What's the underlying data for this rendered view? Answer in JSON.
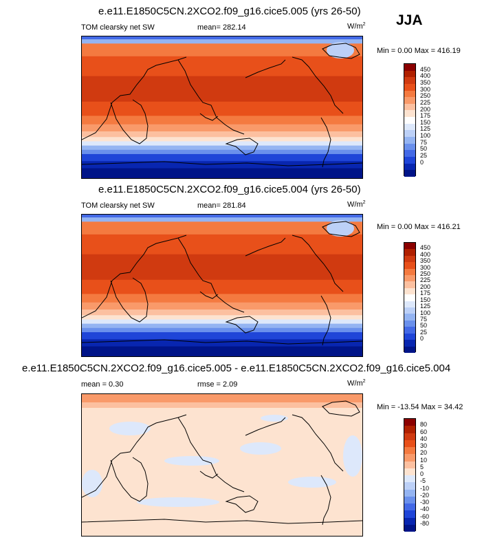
{
  "season": "JJA",
  "colors": {
    "abs_scale": [
      "#8b0000",
      "#b02000",
      "#d03a10",
      "#e8501a",
      "#f47a40",
      "#f99a6a",
      "#fcc0a0",
      "#fde3d0",
      "#ffffff",
      "#dde8fb",
      "#bcd0f7",
      "#94b4f2",
      "#6a90ec",
      "#4369e6",
      "#1f45d8",
      "#0826b0",
      "#001488"
    ],
    "diff_scale": [
      "#8b0000",
      "#b02000",
      "#d03a10",
      "#e8501a",
      "#f47a40",
      "#f99a6a",
      "#fcc0a0",
      "#fde3d0",
      "#dde8fb",
      "#bcd0f7",
      "#94b4f2",
      "#6a90ec",
      "#4369e6",
      "#1f45d8",
      "#0826b0",
      "#001488"
    ]
  },
  "panels": [
    {
      "title": "e.e11.E1850C5CN.2XCO2.f09_g16.cice5.005 (yrs 26-50)",
      "left_label": "TOM clearsky net SW",
      "mid_label": "mean= 282.14",
      "units": "W/m",
      "units_exp": "2",
      "minmax": "Min =   0.00 Max = 416.19",
      "colorbar_labels": [
        "450",
        "400",
        "350",
        "300",
        "250",
        "225",
        "200",
        "175",
        "150",
        "125",
        "100",
        "75",
        "50",
        "25",
        "0"
      ],
      "field": "abs"
    },
    {
      "title": "e.e11.E1850C5CN.2XCO2.f09_g16.cice5.004 (yrs 26-50)",
      "left_label": "TOM clearsky net SW",
      "mid_label": "mean= 281.84",
      "units": "W/m",
      "units_exp": "2",
      "minmax": "Min =   0.00 Max = 416.21",
      "colorbar_labels": [
        "450",
        "400",
        "350",
        "300",
        "250",
        "225",
        "200",
        "175",
        "150",
        "125",
        "100",
        "75",
        "50",
        "25",
        "0"
      ],
      "field": "abs"
    },
    {
      "title": "e.e11.E1850C5CN.2XCO2.f09_g16.cice5.005 - e.e11.E1850C5CN.2XCO2.f09_g16.cice5.004",
      "left_label": "mean =   0.30",
      "mid_label": "rmse =   2.09",
      "units": "W/m",
      "units_exp": "2",
      "minmax": "Min = -13.54 Max =  34.42",
      "colorbar_labels": [
        "80",
        "60",
        "40",
        "30",
        "20",
        "10",
        "5",
        "0",
        "-5",
        "-10",
        "-20",
        "-30",
        "-40",
        "-60",
        "-80"
      ],
      "field": "diff"
    }
  ]
}
